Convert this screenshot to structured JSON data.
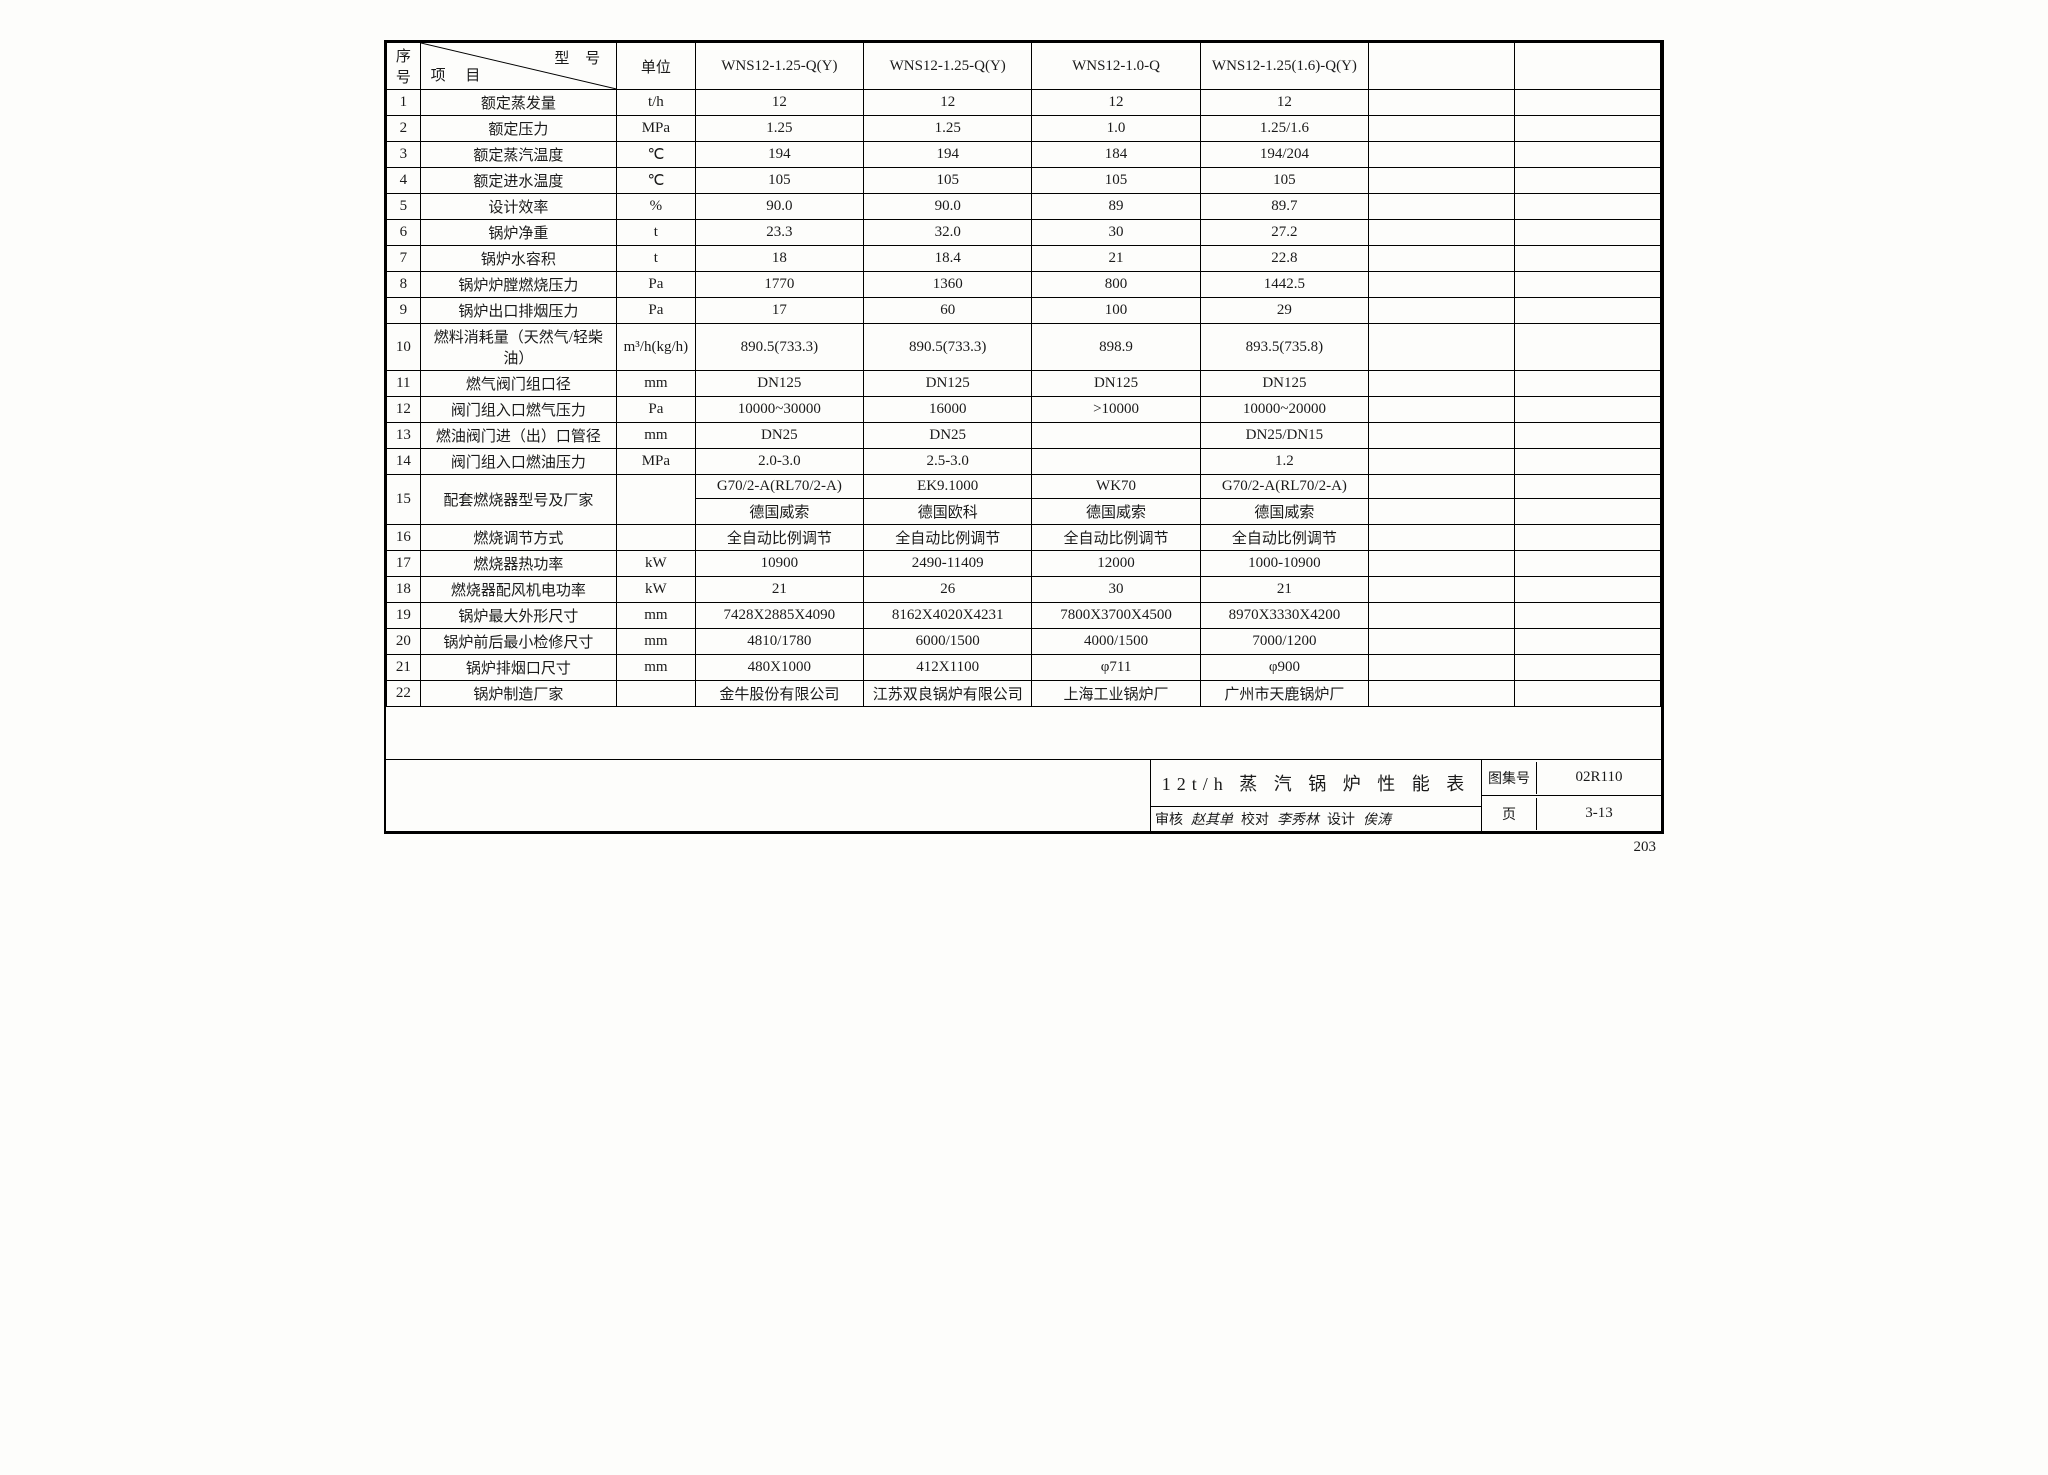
{
  "header": {
    "idx": "序号",
    "diag_top": "型 号",
    "diag_bottom": "项 目",
    "unit": "单位",
    "models": [
      "WNS12-1.25-Q(Y)",
      "WNS12-1.25-Q(Y)",
      "WNS12-1.0-Q",
      "WNS12-1.25(1.6)-Q(Y)",
      "",
      ""
    ]
  },
  "rows": [
    {
      "n": "1",
      "item": "额定蒸发量",
      "unit": "t/h",
      "v": [
        "12",
        "12",
        "12",
        "12",
        "",
        ""
      ]
    },
    {
      "n": "2",
      "item": "额定压力",
      "unit": "MPa",
      "v": [
        "1.25",
        "1.25",
        "1.0",
        "1.25/1.6",
        "",
        ""
      ]
    },
    {
      "n": "3",
      "item": "额定蒸汽温度",
      "unit": "℃",
      "v": [
        "194",
        "194",
        "184",
        "194/204",
        "",
        ""
      ]
    },
    {
      "n": "4",
      "item": "额定进水温度",
      "unit": "℃",
      "v": [
        "105",
        "105",
        "105",
        "105",
        "",
        ""
      ]
    },
    {
      "n": "5",
      "item": "设计效率",
      "unit": "%",
      "v": [
        "90.0",
        "90.0",
        "89",
        "89.7",
        "",
        ""
      ]
    },
    {
      "n": "6",
      "item": "锅炉净重",
      "unit": "t",
      "v": [
        "23.3",
        "32.0",
        "30",
        "27.2",
        "",
        ""
      ]
    },
    {
      "n": "7",
      "item": "锅炉水容积",
      "unit": "t",
      "v": [
        "18",
        "18.4",
        "21",
        "22.8",
        "",
        ""
      ]
    },
    {
      "n": "8",
      "item": "锅炉炉膛燃烧压力",
      "unit": "Pa",
      "v": [
        "1770",
        "1360",
        "800",
        "1442.5",
        "",
        ""
      ]
    },
    {
      "n": "9",
      "item": "锅炉出口排烟压力",
      "unit": "Pa",
      "v": [
        "17",
        "60",
        "100",
        "29",
        "",
        ""
      ]
    },
    {
      "n": "10",
      "item": "燃料消耗量（天然气/轻柴油）",
      "unit": "m³/h(kg/h)",
      "v": [
        "890.5(733.3)",
        "890.5(733.3)",
        "898.9",
        "893.5(735.8)",
        "",
        ""
      ]
    },
    {
      "n": "11",
      "item": "燃气阀门组口径",
      "unit": "mm",
      "v": [
        "DN125",
        "DN125",
        "DN125",
        "DN125",
        "",
        ""
      ]
    },
    {
      "n": "12",
      "item": "阀门组入口燃气压力",
      "unit": "Pa",
      "v": [
        "10000~30000",
        "16000",
        ">10000",
        "10000~20000",
        "",
        ""
      ]
    },
    {
      "n": "13",
      "item": "燃油阀门进（出）口管径",
      "unit": "mm",
      "v": [
        "DN25",
        "DN25",
        "",
        "DN25/DN15",
        "",
        ""
      ]
    },
    {
      "n": "14",
      "item": "阀门组入口燃油压力",
      "unit": "MPa",
      "v": [
        "2.0-3.0",
        "2.5-3.0",
        "",
        "1.2",
        "",
        ""
      ]
    }
  ],
  "row15": {
    "n": "15",
    "item": "配套燃烧器型号及厂家",
    "unit": "",
    "top": [
      "G70/2-A(RL70/2-A)",
      "EK9.1000",
      "WK70",
      "G70/2-A(RL70/2-A)",
      "",
      ""
    ],
    "bot": [
      "德国威索",
      "德国欧科",
      "德国威索",
      "德国威索",
      "",
      ""
    ]
  },
  "rows2": [
    {
      "n": "16",
      "item": "燃烧调节方式",
      "unit": "",
      "v": [
        "全自动比例调节",
        "全自动比例调节",
        "全自动比例调节",
        "全自动比例调节",
        "",
        ""
      ]
    },
    {
      "n": "17",
      "item": "燃烧器热功率",
      "unit": "kW",
      "v": [
        "10900",
        "2490-11409",
        "12000",
        "1000-10900",
        "",
        ""
      ]
    },
    {
      "n": "18",
      "item": "燃烧器配风机电功率",
      "unit": "kW",
      "v": [
        "21",
        "26",
        "30",
        "21",
        "",
        ""
      ]
    },
    {
      "n": "19",
      "item": "锅炉最大外形尺寸",
      "unit": "mm",
      "v": [
        "7428X2885X4090",
        "8162X4020X4231",
        "7800X3700X4500",
        "8970X3330X4200",
        "",
        ""
      ]
    },
    {
      "n": "20",
      "item": "锅炉前后最小检修尺寸",
      "unit": "mm",
      "v": [
        "4810/1780",
        "6000/1500",
        "4000/1500",
        "7000/1200",
        "",
        ""
      ]
    },
    {
      "n": "21",
      "item": "锅炉排烟口尺寸",
      "unit": "mm",
      "v": [
        "480X1000",
        "412X1100",
        "φ711",
        "φ900",
        "",
        ""
      ]
    },
    {
      "n": "22",
      "item": "锅炉制造厂家",
      "unit": "",
      "v": [
        "金牛股份有限公司",
        "江苏双良锅炉有限公司",
        "上海工业锅炉厂",
        "广州市天鹿锅炉厂",
        "",
        ""
      ]
    }
  ],
  "titleblock": {
    "title": "12t/h 蒸 汽 锅 炉 性 能 表",
    "audit_label": "审核",
    "audit_sig": "赵其单",
    "check_label": "校对",
    "check_sig": "李秀林",
    "design_label": "设计",
    "design_sig": "俟涛",
    "set_label": "图集号",
    "set_val": "02R110",
    "page_label": "页",
    "page_val": "3-13"
  },
  "page_number": "203"
}
